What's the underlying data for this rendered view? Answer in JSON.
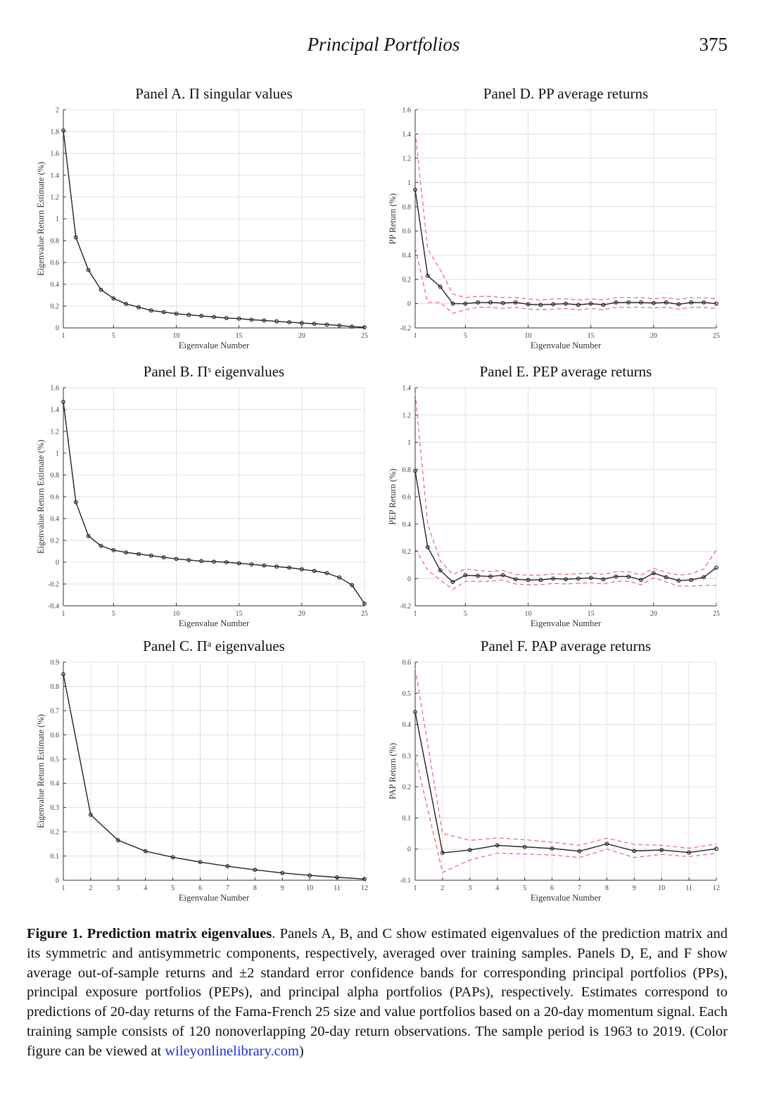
{
  "header": {
    "running_title": "Principal Portfolios",
    "page_number": "375"
  },
  "caption": {
    "label": "Figure 1.",
    "title": "Prediction matrix eigenvalues",
    "text_before_link": ". Panels A, B, and C show estimated eigenvalues of the prediction matrix and its symmetric and antisymmetric components, respectively, averaged over training samples. Panels D, E, and F show average out-of-sample returns and ±2 standard error confidence bands for corresponding principal portfolios (PPs), principal exposure portfolios (PEPs), and principal alpha portfolios (PAPs), respectively. Estimates correspond to predictions of 20-day returns of the Fama-French 25 size and value portfolios based on a 20-day momentum signal. Each training sample consists of 120 nonoverlapping 20-day return observations. The sample period is 1963 to 2019. (Color figure can be viewed at ",
    "link": "wileyonlinelibrary.com",
    "text_after_link": ")"
  },
  "colors": {
    "main_line": "#222222",
    "band": "#ee6666",
    "grid": "#e0e0e0",
    "axis": "#333333"
  },
  "chart_data": [
    {
      "panel": "A",
      "type": "line",
      "title": "Panel A. Π singular values",
      "xlabel": "Eigenvalue Number",
      "ylabel": "Eigenvalue Return Estimate (%)",
      "xlim": [
        1,
        25
      ],
      "ylim": [
        0,
        2
      ],
      "xticks": [
        1,
        5,
        10,
        15,
        20,
        25
      ],
      "xtick_labels": [
        "1",
        "5",
        "10",
        "15",
        "20",
        "25"
      ],
      "yticks": [
        0,
        0.2,
        0.4,
        0.6,
        0.8,
        1,
        1.2,
        1.4,
        1.6,
        1.8,
        2
      ],
      "ytick_labels": [
        "0",
        "0.2",
        "0.4",
        "0.6",
        "0.8",
        "1",
        "1.2",
        "1.4",
        "1.6",
        "1.8",
        "2"
      ],
      "x": [
        1,
        2,
        3,
        4,
        5,
        6,
        7,
        8,
        9,
        10,
        11,
        12,
        13,
        14,
        15,
        16,
        17,
        18,
        19,
        20,
        21,
        22,
        23,
        24,
        25
      ],
      "values": [
        1.81,
        0.83,
        0.53,
        0.35,
        0.27,
        0.22,
        0.19,
        0.16,
        0.145,
        0.13,
        0.12,
        0.11,
        0.1,
        0.09,
        0.085,
        0.075,
        0.068,
        0.06,
        0.052,
        0.045,
        0.038,
        0.03,
        0.022,
        0.012,
        0.005
      ],
      "grid": true
    },
    {
      "panel": "B",
      "type": "line",
      "title": "Panel B. Πˢ eigenvalues",
      "xlabel": "Eigenvalue Number",
      "ylabel": "Eigenvalue Return Estimate (%)",
      "xlim": [
        1,
        25
      ],
      "ylim": [
        -0.4,
        1.6
      ],
      "xticks": [
        1,
        5,
        10,
        15,
        20,
        25
      ],
      "xtick_labels": [
        "1",
        "5",
        "10",
        "15",
        "20",
        "25"
      ],
      "yticks": [
        -0.4,
        -0.2,
        0,
        0.2,
        0.4,
        0.6,
        0.8,
        1,
        1.2,
        1.4,
        1.6
      ],
      "ytick_labels": [
        "-0.4",
        "-0.2",
        "0",
        "0.2",
        "0.4",
        "0.6",
        "0.8",
        "1",
        "1.2",
        "1.4",
        "1.6"
      ],
      "x": [
        1,
        2,
        3,
        4,
        5,
        6,
        7,
        8,
        9,
        10,
        11,
        12,
        13,
        14,
        15,
        16,
        17,
        18,
        19,
        20,
        21,
        22,
        23,
        24,
        25
      ],
      "values": [
        1.47,
        0.55,
        0.24,
        0.15,
        0.11,
        0.09,
        0.075,
        0.06,
        0.045,
        0.03,
        0.02,
        0.01,
        0.005,
        0.0,
        -0.01,
        -0.02,
        -0.03,
        -0.04,
        -0.05,
        -0.065,
        -0.08,
        -0.1,
        -0.14,
        -0.21,
        -0.38
      ],
      "grid": true
    },
    {
      "panel": "C",
      "type": "line",
      "title": "Panel C. Πᵃ eigenvalues",
      "xlabel": "Eigenvalue Number",
      "ylabel": "Eigenvalue Return Estimate (%)",
      "xlim": [
        1,
        12
      ],
      "ylim": [
        0,
        0.9
      ],
      "xticks": [
        1,
        2,
        3,
        4,
        5,
        6,
        7,
        8,
        9,
        10,
        11,
        12
      ],
      "xtick_labels": [
        "1",
        "2",
        "3",
        "4",
        "5",
        "6",
        "7",
        "8",
        "9",
        "10",
        "11",
        "12"
      ],
      "yticks": [
        0,
        0.1,
        0.2,
        0.3,
        0.4,
        0.5,
        0.6,
        0.7,
        0.8,
        0.9
      ],
      "ytick_labels": [
        "0",
        "0.1",
        "0.2",
        "0.3",
        "0.4",
        "0.5",
        "0.6",
        "0.7",
        "0.8",
        "0.9"
      ],
      "x": [
        1,
        2,
        3,
        4,
        5,
        6,
        7,
        8,
        9,
        10,
        11,
        12
      ],
      "values": [
        0.85,
        0.27,
        0.165,
        0.12,
        0.095,
        0.075,
        0.058,
        0.043,
        0.03,
        0.02,
        0.012,
        0.005
      ],
      "grid": true
    },
    {
      "panel": "D",
      "type": "line",
      "title": "Panel D. PP average returns",
      "xlabel": "Eigenvalue Number",
      "ylabel": "PP Return (%)",
      "xlim": [
        1,
        25
      ],
      "ylim": [
        -0.2,
        1.6
      ],
      "xticks": [
        1,
        5,
        10,
        15,
        20,
        25
      ],
      "xtick_labels": [
        "1",
        "5",
        "10",
        "15",
        "20",
        "25"
      ],
      "yticks": [
        -0.2,
        0,
        0.2,
        0.4,
        0.6,
        0.8,
        1,
        1.2,
        1.4,
        1.6
      ],
      "ytick_labels": [
        "-0.2",
        "0",
        "0.2",
        "0.4",
        "0.6",
        "0.8",
        "1",
        "1.2",
        "1.4",
        "1.6"
      ],
      "x": [
        1,
        2,
        3,
        4,
        5,
        6,
        7,
        8,
        9,
        10,
        11,
        12,
        13,
        14,
        15,
        16,
        17,
        18,
        19,
        20,
        21,
        22,
        23,
        24,
        25
      ],
      "values": [
        0.94,
        0.23,
        0.14,
        0.0,
        0.0,
        0.01,
        0.01,
        0.005,
        0.01,
        -0.005,
        -0.01,
        -0.005,
        0.0,
        -0.01,
        0.0,
        -0.01,
        0.01,
        0.01,
        0.01,
        0.005,
        0.01,
        -0.005,
        0.01,
        0.01,
        0.0
      ],
      "upper": [
        1.42,
        0.45,
        0.28,
        0.08,
        0.05,
        0.06,
        0.06,
        0.05,
        0.05,
        0.04,
        0.03,
        0.04,
        0.04,
        0.03,
        0.04,
        0.03,
        0.05,
        0.05,
        0.05,
        0.04,
        0.05,
        0.035,
        0.05,
        0.05,
        0.04
      ],
      "lower": [
        0.46,
        0.01,
        0.01,
        -0.08,
        -0.05,
        -0.03,
        -0.03,
        -0.04,
        -0.03,
        -0.045,
        -0.05,
        -0.045,
        -0.04,
        -0.05,
        -0.04,
        -0.05,
        -0.03,
        -0.03,
        -0.03,
        -0.035,
        -0.03,
        -0.045,
        -0.03,
        -0.03,
        -0.04
      ],
      "grid": true
    },
    {
      "panel": "E",
      "type": "line",
      "title": "Panel E. PEP average returns",
      "xlabel": "Eigenvalue Number",
      "ylabel": "PEP Return (%)",
      "xlim": [
        1,
        25
      ],
      "ylim": [
        -0.2,
        1.4
      ],
      "xticks": [
        1,
        5,
        10,
        15,
        20,
        25
      ],
      "xtick_labels": [
        "1",
        "5",
        "10",
        "15",
        "20",
        "25"
      ],
      "yticks": [
        -0.2,
        0,
        0.2,
        0.4,
        0.6,
        0.8,
        1,
        1.2,
        1.4
      ],
      "ytick_labels": [
        "-0.2",
        "0",
        "0.2",
        "0.4",
        "0.6",
        "0.8",
        "1",
        "1.2",
        "1.4"
      ],
      "x": [
        1,
        2,
        3,
        4,
        5,
        6,
        7,
        8,
        9,
        10,
        11,
        12,
        13,
        14,
        15,
        16,
        17,
        18,
        19,
        20,
        21,
        22,
        23,
        24,
        25
      ],
      "values": [
        0.79,
        0.23,
        0.06,
        -0.025,
        0.025,
        0.02,
        0.015,
        0.025,
        -0.005,
        -0.01,
        -0.01,
        0.0,
        -0.005,
        0.0,
        0.005,
        -0.005,
        0.015,
        0.015,
        -0.01,
        0.04,
        0.01,
        -0.015,
        -0.01,
        0.01,
        0.08
      ],
      "upper": [
        1.36,
        0.4,
        0.13,
        0.03,
        0.07,
        0.06,
        0.05,
        0.06,
        0.03,
        0.025,
        0.025,
        0.035,
        0.03,
        0.035,
        0.04,
        0.03,
        0.05,
        0.05,
        0.025,
        0.075,
        0.045,
        0.025,
        0.035,
        0.07,
        0.21
      ],
      "lower": [
        0.22,
        0.06,
        -0.01,
        -0.08,
        -0.02,
        -0.02,
        -0.02,
        -0.01,
        -0.04,
        -0.045,
        -0.045,
        -0.035,
        -0.04,
        -0.035,
        -0.03,
        -0.04,
        -0.02,
        -0.02,
        -0.045,
        0.005,
        -0.025,
        -0.055,
        -0.055,
        -0.05,
        -0.05
      ],
      "grid": true
    },
    {
      "panel": "F",
      "type": "line",
      "title": "Panel F. PAP average returns",
      "xlabel": "Eigenvalue Number",
      "ylabel": "PAP Return (%)",
      "xlim": [
        1,
        12
      ],
      "ylim": [
        -0.1,
        0.6
      ],
      "xticks": [
        1,
        2,
        3,
        4,
        5,
        6,
        7,
        8,
        9,
        10,
        11,
        12
      ],
      "xtick_labels": [
        "1",
        "2",
        "3",
        "4",
        "5",
        "6",
        "7",
        "8",
        "9",
        "10",
        "11",
        "12"
      ],
      "yticks": [
        -0.1,
        0,
        0.1,
        0.2,
        0.3,
        0.4,
        0.5,
        0.6
      ],
      "ytick_labels": [
        "-0.1",
        "0",
        "0.1",
        "0.2",
        "0.3",
        "0.4",
        "0.5",
        "0.6"
      ],
      "x": [
        1,
        2,
        3,
        4,
        5,
        6,
        7,
        8,
        9,
        10,
        11,
        12
      ],
      "values": [
        0.44,
        -0.012,
        -0.003,
        0.012,
        0.007,
        0.002,
        -0.007,
        0.017,
        -0.006,
        -0.003,
        -0.011,
        0.001
      ],
      "upper": [
        0.58,
        0.05,
        0.028,
        0.036,
        0.03,
        0.022,
        0.012,
        0.035,
        0.015,
        0.012,
        0.003,
        0.016
      ],
      "lower": [
        0.3,
        -0.075,
        -0.035,
        -0.013,
        -0.016,
        -0.019,
        -0.027,
        0.0,
        -0.027,
        -0.017,
        -0.024,
        -0.014
      ],
      "grid": true
    }
  ]
}
